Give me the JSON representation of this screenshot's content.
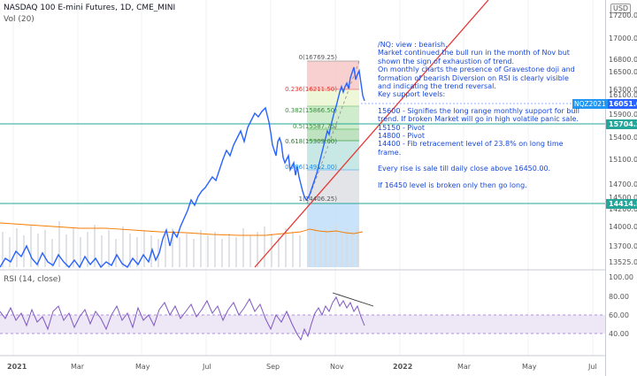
{
  "header": {
    "title": "NASDAQ 100 E-mini Futures, 1D, CME_MINI",
    "volume_label": "Vol (20)",
    "currency": "USD"
  },
  "rsi": {
    "label": "RSI (14, close)",
    "axis": [
      "100.00",
      "80.00",
      "60.00",
      "40.00"
    ]
  },
  "price_axis": [
    "17200.00",
    "17000.00",
    "16800.00",
    "16500.00",
    "16300.00",
    "16100.00",
    "15900.00",
    "15400.00",
    "15100.00",
    "14700.00",
    "14500.00",
    "14200.00",
    "14000.00",
    "13700.00",
    "13525.00"
  ],
  "tags": {
    "current_symbol": "NQZ2021",
    "current_price": "16051.00",
    "support_1": "15704.25",
    "support_2": "14414.50"
  },
  "time_axis": [
    "2021",
    "Mar",
    "May",
    "Jul",
    "Sep",
    "Nov",
    "2022",
    "Mar",
    "May",
    "Jul"
  ],
  "fib_levels": [
    {
      "label": "0(16769.25)",
      "color": "#555555"
    },
    {
      "label": "0.236(16211.50)",
      "color": "#e53935"
    },
    {
      "label": "0.382(15866.50)",
      "color": "#388e3c"
    },
    {
      "label": "0.5(15587.75)",
      "color": "#388e3c"
    },
    {
      "label": "0.618(15309.00)",
      "color": "#2e7d32"
    },
    {
      "label": "0.786(14912.00)",
      "color": "#1e88e5"
    },
    {
      "label": "1(14406.25)",
      "color": "#555555"
    }
  ],
  "note": {
    "lines": [
      "/NQ: view : bearish.",
      "Market continued the bull run in the month of Nov but shown the sign of exhaustion of trend.",
      "On monthly charts the presence of Gravestone doji and formation of bearish Diversion on RSI is clearly visible and indicating the trend reversal.",
      "Key support levels:",
      "",
      "15600 - Signifies the long range monthly support for bull trend. If broken Market will go in high volatile panic sale.",
      "15150 - Pivot",
      "14800 - Pivot",
      "14400 - Fib retracement level of 23.8% on long time frame.",
      "",
      "Every rise is sale till daily close above 16450.00.",
      "",
      "If 16450 level is broken only then go long."
    ]
  },
  "colors": {
    "price_line": "#2962ff",
    "trend_line": "#e53935",
    "support_line": "#26a69a",
    "volume_ma": "#f57c00",
    "rsi_line": "#7e57c2"
  }
}
